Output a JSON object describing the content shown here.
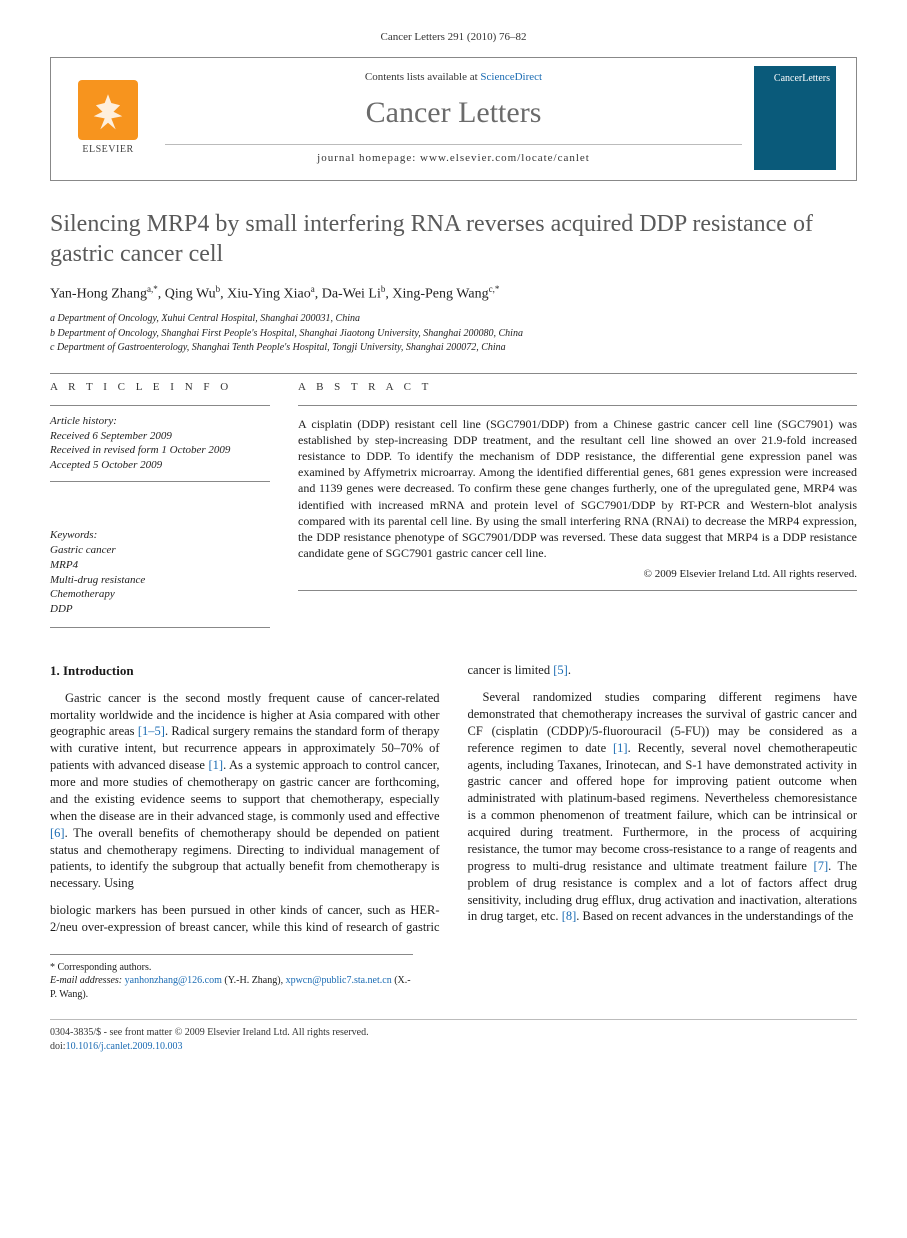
{
  "running_head": "Cancer Letters 291 (2010) 76–82",
  "masthead": {
    "publisher_word": "ELSEVIER",
    "contents_prefix": "Contents lists available at ",
    "contents_link": "ScienceDirect",
    "journal_name": "Cancer Letters",
    "homepage_label": "journal homepage: www.elsevier.com/locate/canlet",
    "cover_label": "CancerLetters"
  },
  "article": {
    "title": "Silencing MRP4 by small interfering RNA reverses acquired DDP resistance of gastric cancer cell",
    "authors_html": "Yan-Hong Zhang<sup>a,*</sup>, Qing Wu<sup>b</sup>, Xiu-Ying Xiao<sup>a</sup>, Da-Wei Li<sup>b</sup>, Xing-Peng Wang<sup>c,*</sup>",
    "affiliations": [
      "a Department of Oncology, Xuhui Central Hospital, Shanghai 200031, China",
      "b Department of Oncology, Shanghai First People's Hospital, Shanghai Jiaotong University, Shanghai 200080, China",
      "c Department of Gastroenterology, Shanghai Tenth People's Hospital, Tongji University, Shanghai 200072, China"
    ]
  },
  "info": {
    "heading": "A R T I C L E   I N F O",
    "history_head": "Article history:",
    "history": [
      "Received 6 September 2009",
      "Received in revised form 1 October 2009",
      "Accepted 5 October 2009"
    ],
    "keywords_head": "Keywords:",
    "keywords": [
      "Gastric cancer",
      "MRP4",
      "Multi-drug resistance",
      "Chemotherapy",
      "DDP"
    ]
  },
  "abstract": {
    "heading": "A B S T R A C T",
    "text": "A cisplatin (DDP) resistant cell line (SGC7901/DDP) from a Chinese gastric cancer cell line (SGC7901) was established by step-increasing DDP treatment, and the resultant cell line showed an over 21.9-fold increased resistance to DDP. To identify the mechanism of DDP resistance, the differential gene expression panel was examined by Affymetrix microarray. Among the identified differential genes, 681 genes expression were increased and 1139 genes were decreased. To confirm these gene changes furtherly, one of the upregulated gene, MRP4 was identified with increased mRNA and protein level of SGC7901/DDP by RT-PCR and Western-blot analysis compared with its parental cell line. By using the small interfering RNA (RNAi) to decrease the MRP4 expression, the DDP resistance phenotype of SGC7901/DDP was reversed. These data suggest that MRP4 is a DDP resistance candidate gene of SGC7901 gastric cancer cell line.",
    "copyright": "© 2009 Elsevier Ireland Ltd. All rights reserved."
  },
  "body": {
    "section_heading": "1. Introduction",
    "p1": "Gastric cancer is the second mostly frequent cause of cancer-related mortality worldwide and the incidence is higher at Asia compared with other geographic areas [1–5]. Radical surgery remains the standard form of therapy with curative intent, but recurrence appears in approximately 50–70% of patients with advanced disease [1]. As a systemic approach to control cancer, more and more studies of chemotherapy on gastric cancer are forthcoming, and the existing evidence seems to support that chemotherapy, especially when the disease are in their advanced stage, is commonly used and effective [6]. The overall benefits of chemotherapy should be depended on patient status and chemotherapy regimens. Directing to individual management of patients, to identify the subgroup that actually benefit from chemotherapy is necessary. Using",
    "p2": "biologic markers has been pursued in other kinds of cancer, such as HER-2/neu over-expression of breast cancer, while this kind of research of gastric cancer is limited [5].",
    "p3": "Several randomized studies comparing different regimens have demonstrated that chemotherapy increases the survival of gastric cancer and CF (cisplatin (CDDP)/5-fluorouracil (5-FU)) may be considered as a reference regimen to date [1]. Recently, several novel chemotherapeutic agents, including Taxanes, Irinotecan, and S-1 have demonstrated activity in gastric cancer and offered hope for improving patient outcome when administrated with platinum-based regimens. Nevertheless chemoresistance is a common phenomenon of treatment failure, which can be intrinsical or acquired during treatment. Furthermore, in the process of acquiring resistance, the tumor may become cross-resistance to a range of reagents and progress to multi-drug resistance and ultimate treatment failure [7]. The problem of drug resistance is complex and a lot of factors affect drug sensitivity, including drug efflux, drug activation and inactivation, alterations in drug target, etc. [8]. Based on recent advances in the understandings of the"
  },
  "footnote": {
    "corr_label": "* Corresponding authors.",
    "email_label": "E-mail addresses:",
    "email1": "yanhonzhang@126.com",
    "email1_who": "(Y.-H. Zhang),",
    "email2": "xpwcn@public7.sta.net.cn",
    "email2_who": "(X.-P. Wang)."
  },
  "bottom": {
    "left1": "0304-3835/$ - see front matter © 2009 Elsevier Ireland Ltd. All rights reserved.",
    "left2_prefix": "doi:",
    "doi": "10.1016/j.canlet.2009.10.003"
  },
  "colors": {
    "link": "#1a6bb3",
    "title_grey": "#5a5a5a",
    "elsevier_orange": "#f7941e",
    "cover_blue": "#0a5a7a"
  }
}
